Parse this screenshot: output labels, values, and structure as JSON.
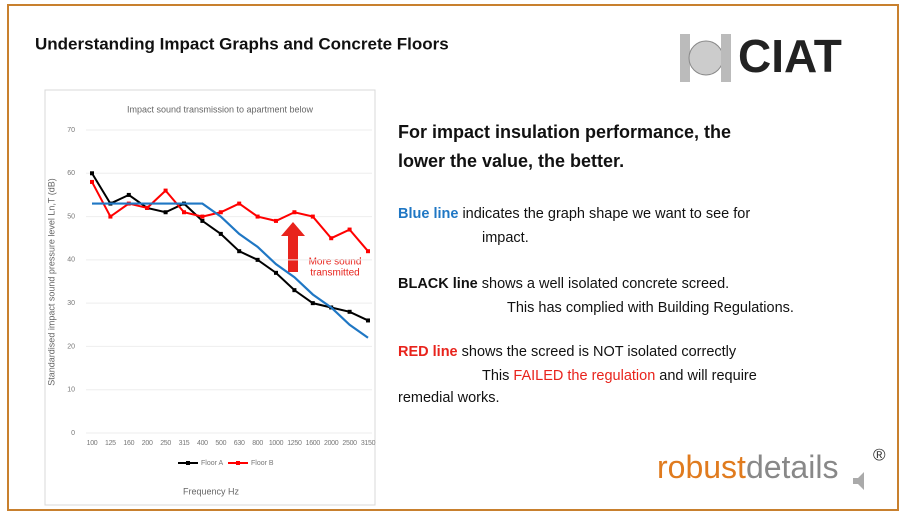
{
  "slide": {
    "title": "Understanding Impact Graphs and Concrete Floors",
    "logo_top": "CIAT",
    "logo_bottom": {
      "strong": "robust",
      "light": "details",
      "mark": "®"
    },
    "heading": [
      "For impact insulation performance, the",
      "lower the value, the better."
    ],
    "paragraphs": [
      {
        "lead": "Blue line",
        "lead_color": "#1f77c4",
        "first": "indicates the graph shape we want to see for",
        "lines": [
          {
            "text": "impact."
          }
        ]
      },
      {
        "lead": "BLACK line",
        "lead_color": "#111111",
        "first": "shows a well isolated concrete screed.",
        "lines": [
          {
            "text": "This has complied with Building Regulations."
          }
        ]
      },
      {
        "lead": "RED line",
        "lead_color": "#e8231c",
        "first": "shows the screed is NOT isolated correctly",
        "lines": [
          {
            "before": "This",
            "emphasis": "FAILED the regulation",
            "after": "and will require"
          },
          {
            "text": "remedial works."
          }
        ]
      }
    ]
  },
  "chart_data": {
    "type": "line",
    "title": "Impact sound transmission to apartment below",
    "y_label": "Standardised impact sound pressure level Ln,T (dB)",
    "x_label": "Frequency Hz",
    "categories": [
      "100",
      "125",
      "160",
      "200",
      "250",
      "315",
      "400",
      "500",
      "630",
      "800",
      "1000",
      "1250",
      "1600",
      "2000",
      "2500",
      "3150"
    ],
    "series": [
      {
        "name": "Floor A",
        "color": "#000000",
        "values": [
          60,
          53,
          55,
          52,
          51,
          53,
          49,
          46,
          42,
          40,
          37,
          33,
          30,
          29,
          28,
          26
        ]
      },
      {
        "name": "Floor B",
        "color": "#ff0000",
        "values": [
          58,
          50,
          53,
          52,
          56,
          51,
          50,
          51,
          53,
          50,
          49,
          51,
          50,
          45,
          47,
          42
        ]
      },
      {
        "color": "#1f77c4",
        "values": [
          53,
          53,
          53,
          53,
          53,
          53,
          53,
          50,
          46,
          43,
          39,
          36,
          32,
          29,
          25,
          22
        ]
      }
    ],
    "ylim": [
      0,
      70
    ],
    "yticks": [
      0,
      10,
      20,
      30,
      40,
      50,
      60,
      70
    ],
    "grid": true,
    "legend": "bottom",
    "annotation": {
      "lines": [
        "More sound",
        "transmitted"
      ],
      "color": "#e8231c"
    }
  }
}
